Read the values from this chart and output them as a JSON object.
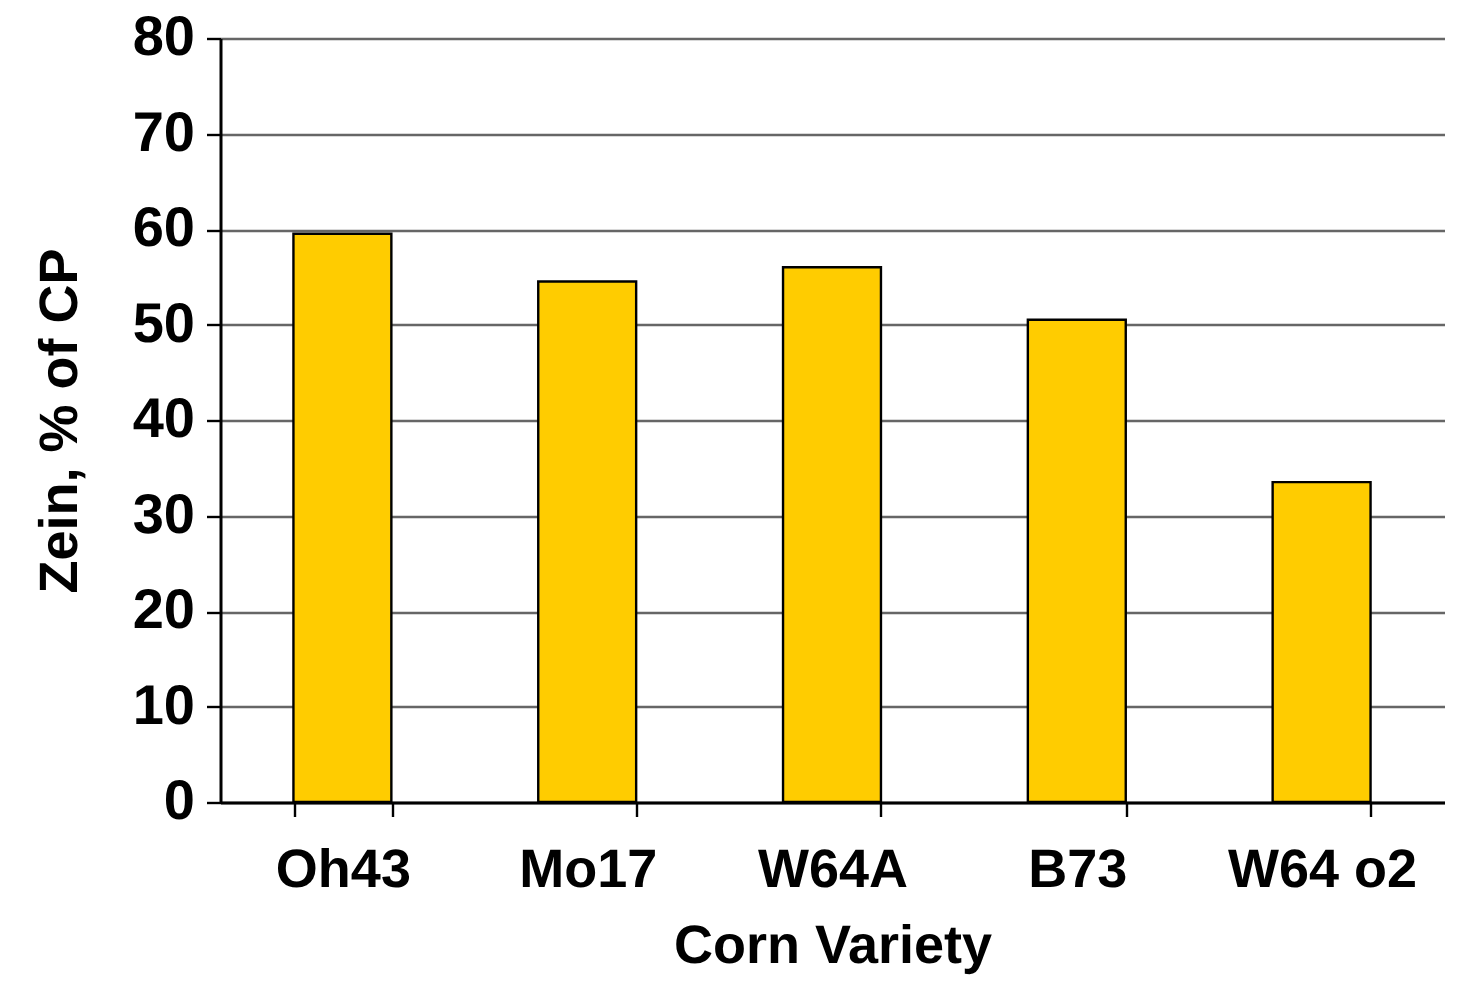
{
  "chart_data": {
    "type": "bar",
    "xlabel": "Corn Variety",
    "ylabel": "Zein, % of CP",
    "categories": [
      "Oh43",
      "Mo17",
      "W64A",
      "B73",
      "W64 o2"
    ],
    "values": [
      59.5,
      54.5,
      56,
      50.5,
      33.5
    ],
    "color": "#ffcc00",
    "ylim": [
      0,
      80
    ],
    "yticks": [
      0,
      10,
      20,
      30,
      40,
      50,
      60,
      70,
      80
    ],
    "grid": "y"
  }
}
